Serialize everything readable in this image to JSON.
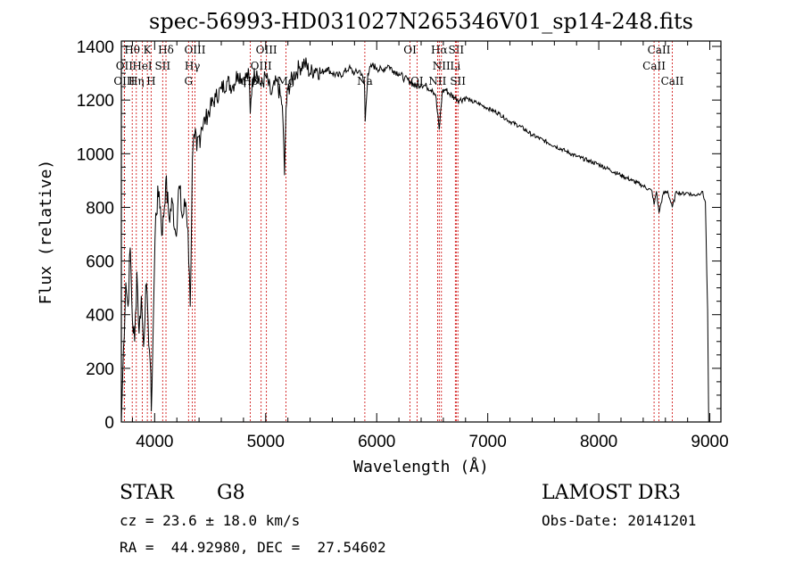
{
  "chart_data": {
    "type": "line",
    "title": "spec-56993-HD031027N265346V01_sp14-248.fits",
    "xlabel": "Wavelength (Å)",
    "ylabel": "Flux (relative)",
    "xlim": [
      3700,
      9100
    ],
    "ylim": [
      0,
      1420
    ],
    "xticks": [
      4000,
      5000,
      6000,
      7000,
      8000,
      9000
    ],
    "yticks": [
      0,
      200,
      400,
      600,
      800,
      1000,
      1200,
      1400
    ],
    "series": [
      {
        "name": "Flux",
        "x": [
          3700,
          3720,
          3740,
          3760,
          3780,
          3800,
          3820,
          3840,
          3860,
          3880,
          3900,
          3920,
          3940,
          3960,
          3970,
          3990,
          4010,
          4040,
          4070,
          4100,
          4130,
          4160,
          4190,
          4220,
          4250,
          4280,
          4300,
          4320,
          4340,
          4360,
          4380,
          4420,
          4460,
          4500,
          4550,
          4600,
          4650,
          4700,
          4750,
          4800,
          4850,
          4861,
          4880,
          4920,
          4960,
          5000,
          5050,
          5100,
          5150,
          5170,
          5183,
          5200,
          5250,
          5300,
          5350,
          5400,
          5450,
          5500,
          5550,
          5600,
          5650,
          5700,
          5750,
          5800,
          5850,
          5890,
          5896,
          5920,
          5960,
          6000,
          6050,
          6100,
          6150,
          6200,
          6250,
          6300,
          6350,
          6400,
          6450,
          6500,
          6530,
          6563,
          6590,
          6620,
          6650,
          6700,
          6750,
          6800,
          6850,
          6900,
          6950,
          7000,
          7100,
          7200,
          7300,
          7400,
          7500,
          7600,
          7700,
          7800,
          7900,
          8000,
          8100,
          8200,
          8300,
          8400,
          8480,
          8498,
          8520,
          8542,
          8580,
          8620,
          8662,
          8700,
          8750,
          8800,
          8850,
          8900,
          8930,
          8960,
          8980,
          8990
        ],
        "values": [
          0,
          280,
          520,
          430,
          650,
          380,
          300,
          560,
          330,
          470,
          280,
          510,
          380,
          220,
          40,
          420,
          780,
          860,
          700,
          900,
          760,
          820,
          700,
          880,
          760,
          820,
          720,
          430,
          980,
          1060,
          1010,
          1100,
          1130,
          1170,
          1210,
          1240,
          1270,
          1250,
          1300,
          1280,
          1290,
          1150,
          1280,
          1310,
          1250,
          1290,
          1220,
          1270,
          1180,
          920,
          1170,
          1240,
          1290,
          1320,
          1340,
          1300,
          1320,
          1300,
          1320,
          1300,
          1290,
          1300,
          1320,
          1300,
          1310,
          1260,
          1120,
          1300,
          1330,
          1320,
          1310,
          1330,
          1310,
          1300,
          1280,
          1270,
          1250,
          1260,
          1250,
          1240,
          1220,
          1090,
          1230,
          1240,
          1225,
          1210,
          1200,
          1210,
          1195,
          1190,
          1180,
          1170,
          1150,
          1120,
          1100,
          1070,
          1050,
          1030,
          1010,
          990,
          975,
          960,
          940,
          920,
          900,
          880,
          860,
          810,
          860,
          780,
          850,
          860,
          800,
          860,
          850,
          855,
          845,
          850,
          860,
          820,
          420,
          0
        ]
      }
    ],
    "emission_lines": [
      {
        "label": "Hθ",
        "wl": 3798,
        "row": 0
      },
      {
        "label": "OII",
        "wl": 3727,
        "row": 1
      },
      {
        "label": "OIII",
        "wl": 3727,
        "row": 2
      },
      {
        "label": "K",
        "wl": 3934,
        "row": 0
      },
      {
        "label": "HeI",
        "wl": 3889,
        "row": 1
      },
      {
        "label": "Hη",
        "wl": 3835,
        "row": 2
      },
      {
        "label": "Hδ",
        "wl": 4102,
        "row": 0
      },
      {
        "label": "SII",
        "wl": 4072,
        "row": 1
      },
      {
        "label": "H",
        "wl": 3968,
        "row": 2
      },
      {
        "label": "OIII",
        "wl": 4363,
        "row": 0
      },
      {
        "label": "Hγ",
        "wl": 4340,
        "row": 1
      },
      {
        "label": "G",
        "wl": 4305,
        "row": 2
      },
      {
        "label": "OIII",
        "wl": 5007,
        "row": 0
      },
      {
        "label": "OIII",
        "wl": 4959,
        "row": 1
      },
      {
        "label": "Hβ",
        "wl": 4861,
        "row": 2
      },
      {
        "label": "Mg",
        "wl": 5183,
        "row": 2
      },
      {
        "label": "Na",
        "wl": 5893,
        "row": 2
      },
      {
        "label": "OI",
        "wl": 6300,
        "row": 0
      },
      {
        "label": "OI",
        "wl": 6363,
        "row": 2
      },
      {
        "label": "Hα",
        "wl": 6563,
        "row": 0
      },
      {
        "label": "NII",
        "wl": 6583,
        "row": 1
      },
      {
        "label": "NII",
        "wl": 6548,
        "row": 2
      },
      {
        "label": "SII",
        "wl": 6716,
        "row": 0
      },
      {
        "label": "Li",
        "wl": 6708,
        "row": 1
      },
      {
        "label": "SII",
        "wl": 6731,
        "row": 2
      },
      {
        "label": "CaII",
        "wl": 8542,
        "row": 0
      },
      {
        "label": "CaII",
        "wl": 8498,
        "row": 1
      },
      {
        "label": "CaII",
        "wl": 8662,
        "row": 2
      }
    ]
  },
  "info": {
    "class_label": "STAR",
    "subclass": "G8",
    "survey": "LAMOST DR3",
    "cz": "cz = 23.6 ± 18.0 km/s",
    "obs_date": "Obs-Date: 20141201",
    "coords": "RA =  44.92980, DEC =  27.54602"
  },
  "colors": {
    "line_marker": "#cc0000",
    "spectrum": "#000000"
  }
}
